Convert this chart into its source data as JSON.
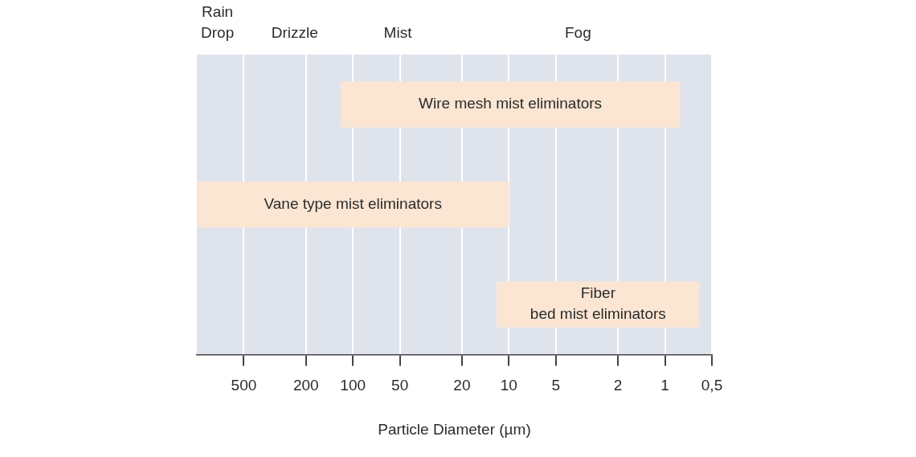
{
  "chart_data": {
    "type": "bar",
    "orientation": "horizontal",
    "xlabel": "Particle Diameter (µm)",
    "categories": [
      "Wire mesh mist eliminators",
      "Vane type mist eliminators",
      "Fiber bed mist eliminators"
    ],
    "base": [
      120,
      1000,
      12
    ],
    "values": [
      -119.2,
      -990,
      -11.4
    ],
    "color": "#fbe6d3",
    "log": "x",
    "xlim": [
      1000,
      0.5
    ],
    "xticks": [
      500,
      200,
      100,
      50,
      20,
      10,
      5,
      2,
      1,
      {
        "value": 0.5,
        "label": "0,5"
      }
    ],
    "grid": "x",
    "tick_labels": "x",
    "legend": false,
    "annotations": [
      "Rain Drop",
      "Drizzle",
      "Mist",
      "Fog"
    ]
  }
}
